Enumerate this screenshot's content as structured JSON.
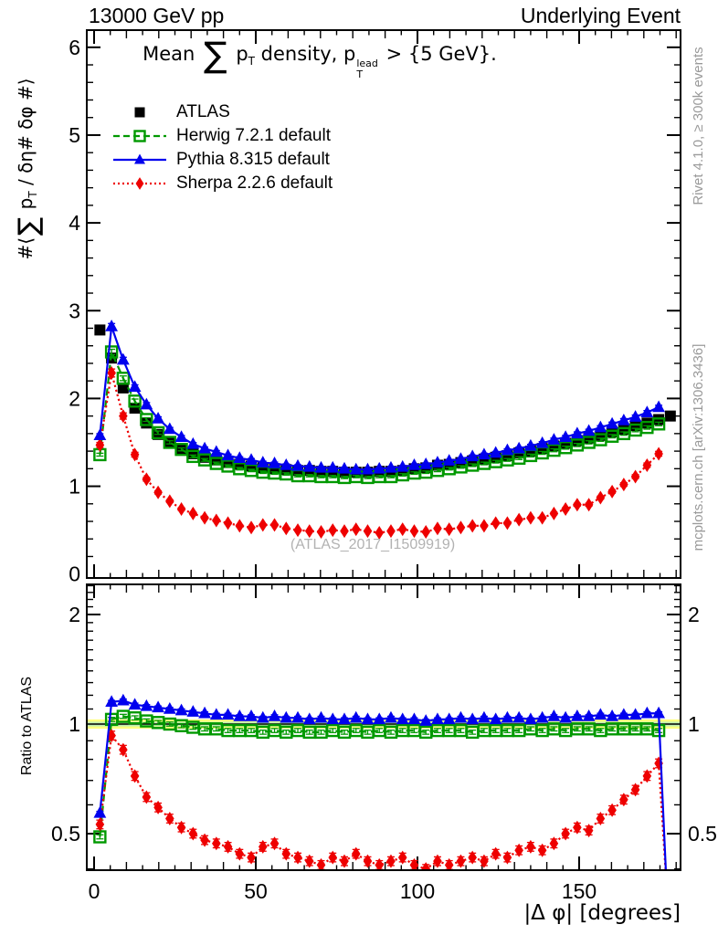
{
  "header": {
    "left": "13000 GeV pp",
    "right": "Underlying Event"
  },
  "title": {
    "pre": "Mean ",
    "sum": "∑",
    "p": " p",
    "p_sub": "T",
    "mid": " density, p",
    "sup": "lead",
    "sub": "T",
    "post": " > {5 GeV}."
  },
  "watermark": "(ATLAS_2017_I1509919)",
  "side_notes": {
    "top": "Rivet 4.1.0, ≥ 300k events",
    "bottom": "mcplots.cern.ch [arXiv:1306.3436]"
  },
  "axes": {
    "main_ylabel_parts": {
      "pre": "#⟨",
      "sum": "∑",
      "p": " p",
      "sub": "T",
      "post": " / δη# δφ #⟩"
    },
    "ratio_ylabel": "Ratio to ATLAS",
    "xlabel": "|Δ φ| [degrees]",
    "x_ticks": [
      0,
      50,
      100,
      150
    ],
    "main_y_ticks": [
      0,
      1,
      2,
      3,
      4,
      5,
      6
    ],
    "ratio_y_ticks": [
      "0.5",
      "1",
      "2"
    ]
  },
  "legend": [
    {
      "id": "atlas",
      "label": "ATLAS",
      "marker": "filled-square",
      "color": "#000000",
      "line": "none"
    },
    {
      "id": "herwig",
      "label": "Herwig 7.2.1 default",
      "marker": "open-square",
      "color": "#009900",
      "line": "dashed"
    },
    {
      "id": "pythia",
      "label": "Pythia 8.315 default",
      "marker": "filled-triangle",
      "color": "#0000ee",
      "line": "solid"
    },
    {
      "id": "sherpa",
      "label": "Sherpa 2.2.6 default",
      "marker": "filled-diamond",
      "color": "#ee0000",
      "line": "dotted"
    }
  ],
  "colors": {
    "data": "#000000",
    "herwig": "#009900",
    "pythia": "#0000ee",
    "sherpa": "#ee0000",
    "band_outer": "#ffff7d",
    "band_inner": "#c2eeb0",
    "gray_text": "#9a9a9a"
  },
  "chart_data": {
    "type": "line",
    "title": "Mean ∑ p_T density, p_T^lead > {5 GeV}.",
    "xlabel": "|Δ φ| [degrees]",
    "xlim": [
      0,
      181
    ],
    "grid": false,
    "legend_position": "top-left",
    "x_centers": [
      1.8,
      5.4,
      9,
      12.6,
      16.2,
      19.8,
      23.4,
      27,
      30.6,
      34.2,
      37.8,
      41.4,
      45,
      48.6,
      52.2,
      55.8,
      59.4,
      63,
      66.6,
      70.2,
      73.8,
      77.4,
      81,
      84.6,
      88.2,
      91.8,
      95.4,
      99,
      102.6,
      106.2,
      109.8,
      113.4,
      117,
      120.6,
      124.2,
      127.8,
      131.4,
      135,
      138.6,
      142.2,
      145.8,
      149.4,
      153,
      156.6,
      160.2,
      163.8,
      167.4,
      171,
      174.6,
      178.2
    ],
    "main": {
      "ylabel": "#⟨∑ p_T / δη# δφ #⟩",
      "ylim": [
        0,
        6.2
      ],
      "series": [
        {
          "key": "atlas",
          "name": "ATLAS",
          "values": [
            2.78,
            2.46,
            2.12,
            1.89,
            1.72,
            1.59,
            1.5,
            1.43,
            1.37,
            1.33,
            1.3,
            1.27,
            1.25,
            1.23,
            1.21,
            1.2,
            1.19,
            1.18,
            1.18,
            1.17,
            1.17,
            1.16,
            1.16,
            1.16,
            1.17,
            1.17,
            1.18,
            1.2,
            1.21,
            1.24,
            1.25,
            1.27,
            1.29,
            1.31,
            1.33,
            1.35,
            1.38,
            1.4,
            1.43,
            1.46,
            1.49,
            1.52,
            1.55,
            1.58,
            1.62,
            1.65,
            1.69,
            1.72,
            1.76,
            1.8
          ]
        },
        {
          "key": "herwig",
          "name": "Herwig 7.2.1 default",
          "values": [
            1.36,
            2.53,
            2.23,
            1.97,
            1.76,
            1.61,
            1.5,
            1.42,
            1.34,
            1.3,
            1.26,
            1.23,
            1.2,
            1.18,
            1.16,
            1.15,
            1.14,
            1.12,
            1.12,
            1.11,
            1.11,
            1.1,
            1.11,
            1.1,
            1.11,
            1.11,
            1.13,
            1.15,
            1.16,
            1.18,
            1.2,
            1.22,
            1.24,
            1.26,
            1.28,
            1.3,
            1.32,
            1.35,
            1.38,
            1.41,
            1.44,
            1.47,
            1.5,
            1.53,
            1.57,
            1.6,
            1.64,
            1.67,
            1.71
          ]
        },
        {
          "key": "pythia",
          "name": "Pythia 8.315 default",
          "values": [
            1.58,
            2.82,
            2.44,
            2.13,
            1.93,
            1.77,
            1.65,
            1.56,
            1.48,
            1.43,
            1.39,
            1.35,
            1.32,
            1.3,
            1.27,
            1.26,
            1.24,
            1.23,
            1.22,
            1.21,
            1.21,
            1.2,
            1.19,
            1.19,
            1.2,
            1.21,
            1.22,
            1.24,
            1.25,
            1.27,
            1.29,
            1.31,
            1.34,
            1.36,
            1.38,
            1.41,
            1.43,
            1.46,
            1.49,
            1.53,
            1.56,
            1.6,
            1.63,
            1.67,
            1.71,
            1.75,
            1.79,
            1.84,
            1.9
          ]
        },
        {
          "key": "sherpa",
          "name": "Sherpa 2.2.6 default",
          "values": [
            1.47,
            2.29,
            1.8,
            1.36,
            1.08,
            0.93,
            0.83,
            0.74,
            0.69,
            0.64,
            0.61,
            0.58,
            0.55,
            0.53,
            0.56,
            0.56,
            0.52,
            0.5,
            0.49,
            0.48,
            0.5,
            0.49,
            0.51,
            0.49,
            0.47,
            0.49,
            0.51,
            0.49,
            0.48,
            0.52,
            0.51,
            0.53,
            0.55,
            0.55,
            0.58,
            0.58,
            0.62,
            0.64,
            0.64,
            0.69,
            0.74,
            0.79,
            0.79,
            0.87,
            0.94,
            1.02,
            1.11,
            1.24,
            1.37
          ]
        }
      ]
    },
    "ratio": {
      "ylabel": "Ratio to ATLAS",
      "ylim": [
        0.4,
        2.45
      ],
      "scale": "log",
      "band_outer": 0.03,
      "band_inner": 0.015,
      "plunge_x": 177,
      "series": [
        {
          "key": "herwig",
          "name": "Herwig 7.2.1 default",
          "values": [
            0.49,
            1.03,
            1.05,
            1.04,
            1.02,
            1.01,
            1.0,
            0.99,
            0.98,
            0.97,
            0.97,
            0.96,
            0.96,
            0.96,
            0.95,
            0.96,
            0.95,
            0.96,
            0.95,
            0.95,
            0.96,
            0.95,
            0.96,
            0.95,
            0.96,
            0.95,
            0.96,
            0.96,
            0.95,
            0.96,
            0.96,
            0.96,
            0.95,
            0.96,
            0.96,
            0.96,
            0.96,
            0.97,
            0.96,
            0.97,
            0.96,
            0.97,
            0.97,
            0.96,
            0.97,
            0.97,
            0.97,
            0.97,
            0.96
          ]
        },
        {
          "key": "pythia",
          "name": "Pythia 8.315 default",
          "values": [
            0.57,
            1.15,
            1.16,
            1.13,
            1.12,
            1.11,
            1.1,
            1.09,
            1.08,
            1.07,
            1.06,
            1.06,
            1.05,
            1.05,
            1.04,
            1.05,
            1.04,
            1.04,
            1.03,
            1.04,
            1.03,
            1.03,
            1.04,
            1.03,
            1.03,
            1.04,
            1.03,
            1.03,
            1.02,
            1.03,
            1.03,
            1.04,
            1.03,
            1.04,
            1.03,
            1.04,
            1.04,
            1.03,
            1.04,
            1.05,
            1.04,
            1.05,
            1.05,
            1.06,
            1.05,
            1.06,
            1.06,
            1.07,
            1.07
          ]
        },
        {
          "key": "sherpa",
          "name": "Sherpa 2.2.6 default",
          "values": [
            0.53,
            0.93,
            0.85,
            0.72,
            0.63,
            0.59,
            0.55,
            0.52,
            0.5,
            0.48,
            0.47,
            0.46,
            0.44,
            0.43,
            0.46,
            0.47,
            0.44,
            0.43,
            0.42,
            0.41,
            0.43,
            0.42,
            0.44,
            0.42,
            0.41,
            0.42,
            0.43,
            0.41,
            0.4,
            0.42,
            0.41,
            0.42,
            0.43,
            0.42,
            0.44,
            0.43,
            0.45,
            0.46,
            0.45,
            0.47,
            0.5,
            0.52,
            0.51,
            0.55,
            0.58,
            0.62,
            0.66,
            0.72,
            0.78
          ]
        }
      ]
    }
  }
}
